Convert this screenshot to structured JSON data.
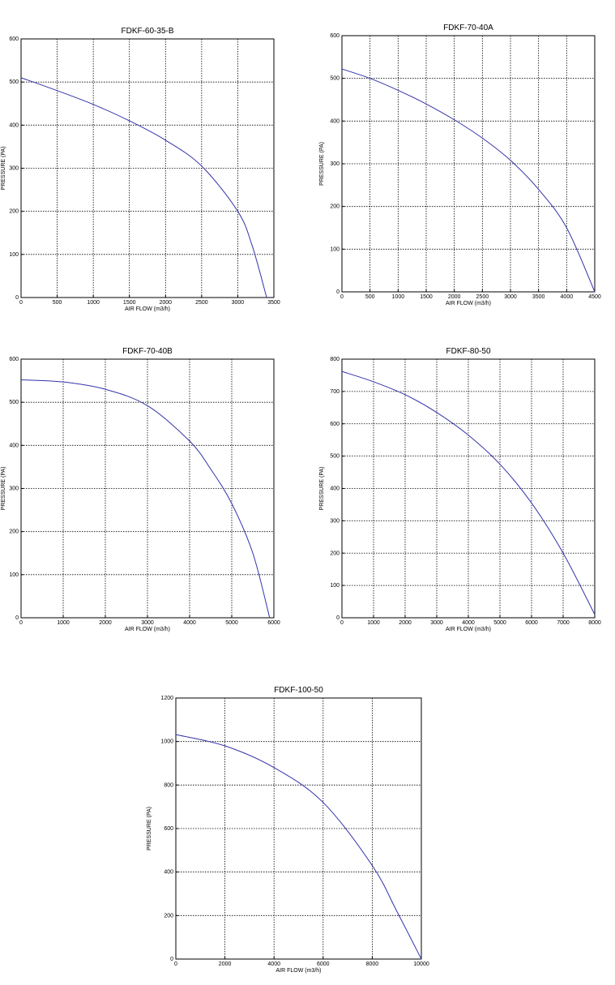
{
  "colors": {
    "curve": "#3333aa",
    "grid": "#000000",
    "frame": "#000000"
  },
  "charts": [
    {
      "type": "line",
      "title": "FDKF-60-35-B",
      "xlabel": "AIR FLOW (m3/h)",
      "ylabel": "PRESSURE (PA)",
      "xlim": [
        0,
        3500
      ],
      "ylim": [
        0,
        600
      ],
      "xticks": [
        0,
        500,
        1000,
        1500,
        2000,
        2500,
        3000,
        3500
      ],
      "yticks": [
        0,
        100,
        200,
        300,
        400,
        500,
        600
      ],
      "grid": true,
      "series": [
        {
          "x": [
            0,
            500,
            1000,
            1500,
            2000,
            2500,
            3000,
            3200,
            3400
          ],
          "y": [
            510,
            480,
            448,
            410,
            365,
            305,
            200,
            120,
            0
          ]
        }
      ]
    },
    {
      "type": "line",
      "title": "FDKF-70-40A",
      "xlabel": "AIR FLOW (m3/h)",
      "ylabel": "PRESSURE (PA)",
      "xlim": [
        0,
        4500
      ],
      "ylim": [
        0,
        600
      ],
      "xticks": [
        0,
        500,
        1000,
        1500,
        2000,
        2500,
        3000,
        3500,
        4000,
        4500
      ],
      "yticks": [
        0,
        100,
        200,
        300,
        400,
        500,
        600
      ],
      "grid": true,
      "series": [
        {
          "x": [
            0,
            500,
            1000,
            1500,
            2000,
            2500,
            3000,
            3500,
            4000,
            4500
          ],
          "y": [
            522,
            500,
            472,
            440,
            403,
            360,
            308,
            240,
            150,
            0
          ]
        }
      ]
    },
    {
      "type": "line",
      "title": "FDKF-70-40B",
      "xlabel": "AIR FLOW (m3/h)",
      "ylabel": "PRESSURE (PA)",
      "xlim": [
        0,
        6000
      ],
      "ylim": [
        0,
        600
      ],
      "xticks": [
        0,
        1000,
        2000,
        3000,
        4000,
        5000,
        6000
      ],
      "yticks": [
        0,
        100,
        200,
        300,
        400,
        500,
        600
      ],
      "grid": true,
      "series": [
        {
          "x": [
            0,
            1000,
            2000,
            3000,
            4000,
            4500,
            5000,
            5500,
            5900
          ],
          "y": [
            552,
            547,
            530,
            492,
            410,
            345,
            265,
            150,
            0
          ]
        }
      ]
    },
    {
      "type": "line",
      "title": "FDKF-80-50",
      "xlabel": "AIR FLOW (m3/h)",
      "ylabel": "PRESSURE (PA)",
      "xlim": [
        0,
        8000
      ],
      "ylim": [
        0,
        800
      ],
      "xticks": [
        0,
        1000,
        2000,
        3000,
        4000,
        5000,
        6000,
        7000,
        8000
      ],
      "yticks": [
        0,
        100,
        200,
        300,
        400,
        500,
        600,
        700,
        800
      ],
      "grid": true,
      "series": [
        {
          "x": [
            0,
            1000,
            2000,
            3000,
            4000,
            5000,
            6000,
            7000,
            8000
          ],
          "y": [
            762,
            730,
            690,
            635,
            565,
            475,
            355,
            200,
            10
          ]
        }
      ]
    },
    {
      "type": "line",
      "title": "FDKF-100-50",
      "xlabel": "AIR FLOW (m3/h)",
      "ylabel": "PRESSURE (PA)",
      "xlim": [
        0,
        10000
      ],
      "ylim": [
        0,
        1200
      ],
      "xticks": [
        0,
        2000,
        4000,
        6000,
        8000,
        10000
      ],
      "yticks": [
        0,
        200,
        400,
        600,
        800,
        1000,
        1200
      ],
      "grid": true,
      "series": [
        {
          "x": [
            0,
            2000,
            4000,
            6000,
            8000,
            9000,
            10000
          ],
          "y": [
            1032,
            980,
            880,
            720,
            430,
            220,
            0
          ]
        }
      ]
    }
  ]
}
